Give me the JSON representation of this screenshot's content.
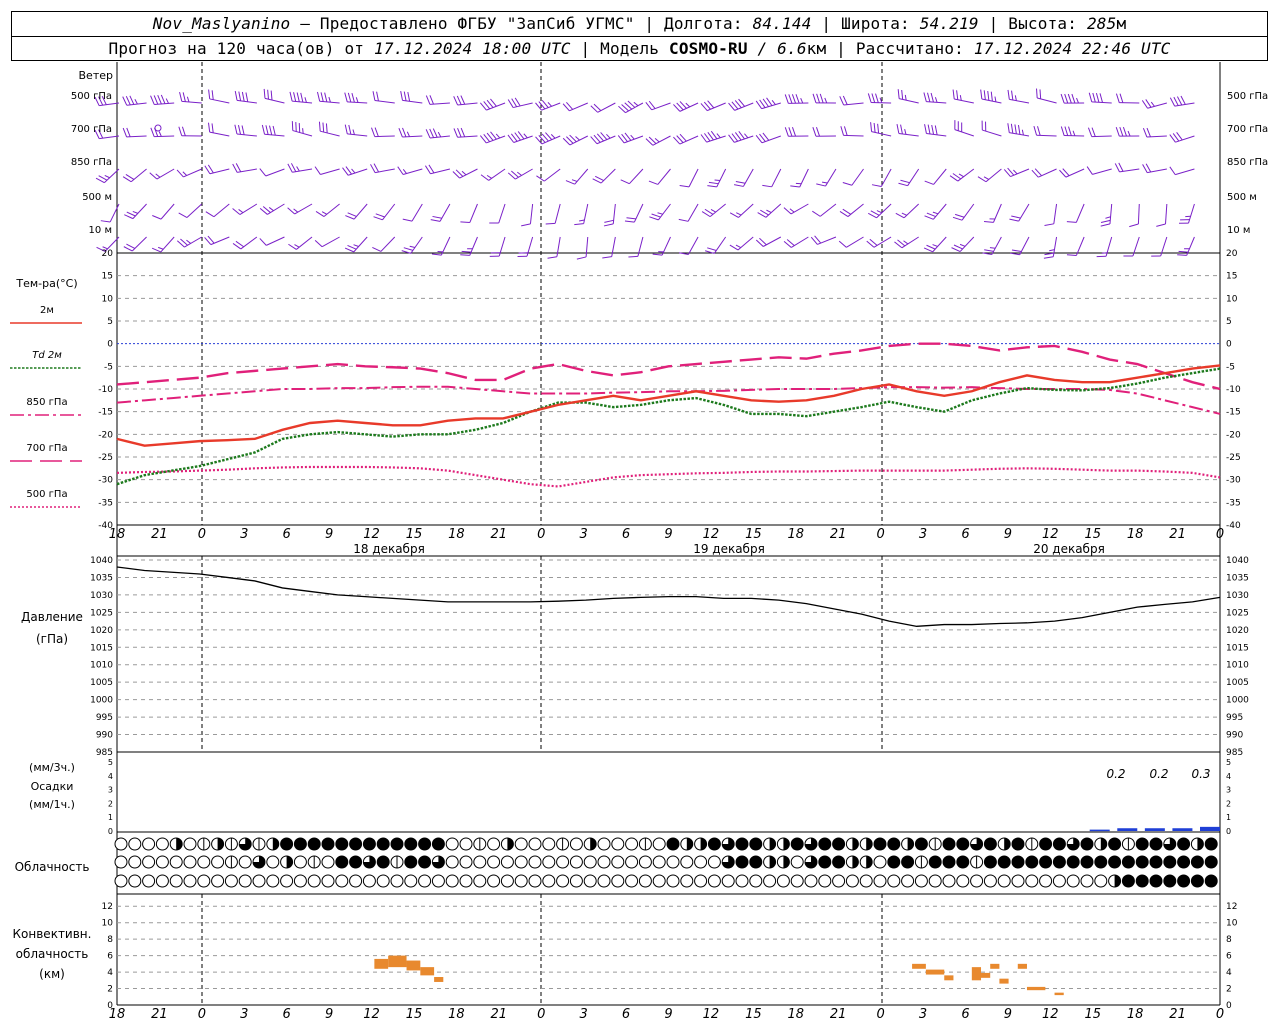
{
  "header": {
    "station": "Nov_Maslyanino",
    "provided_by": "Предоставлено ФГБУ \"ЗапСиб УГМС\"",
    "lon_label": "Долгота:",
    "lon_value": "84.144",
    "lat_label": "Широта:",
    "lat_value": "54.219",
    "alt_label": "Высота:",
    "alt_value": "285",
    "alt_unit": "м",
    "forecast_prefix": "Прогноз на 120 часа(ов) от",
    "forecast_start": "17.12.2024 18:00 UTC",
    "model_label": "Модель",
    "model_name": "COSMO-RU",
    "model_res": "/ 6.6",
    "model_res_unit": "км",
    "computed_label": "Рассчитано:",
    "computed_time": "17.12.2024 22:46 UTC"
  },
  "wind_panel": {
    "title": "Ветер",
    "levels": [
      "500 гПа",
      "700 гПа",
      "850 гПа",
      "500 м",
      "10  м"
    ],
    "color": "#7a20c8"
  },
  "temp_panel": {
    "title": "Тем-ра(°С)",
    "legend": [
      {
        "label": "2м",
        "color": "#e83a2a",
        "style": "solid"
      },
      {
        "label": "Td  2м",
        "color": "#1d7a1d",
        "style": "dotted"
      },
      {
        "label": "850 гПа",
        "color": "#e0207a",
        "style": "dashdot"
      },
      {
        "label": "700 гПа",
        "color": "#e0207a",
        "style": "dash"
      },
      {
        "label": "500 гПа",
        "color": "#e0207a",
        "style": "dot"
      }
    ]
  },
  "time_axis": {
    "hour_labels": [
      "18",
      "21",
      "0",
      "3",
      "6",
      "9",
      "12",
      "15",
      "18",
      "21",
      "0",
      "3",
      "6",
      "9",
      "12",
      "15",
      "18",
      "21",
      "0",
      "3",
      "6",
      "9",
      "12",
      "15",
      "18",
      "21",
      "0"
    ],
    "day_labels": [
      "18 декабря",
      "19 декабря",
      "20 декабря"
    ]
  },
  "pressure_panel": {
    "title": "Давление",
    "unit": "(гПа)"
  },
  "precip_panel": {
    "unit1": "(мм/3ч.)",
    "title": "Осадки",
    "unit2": "(мм/1ч.)",
    "annotations": [
      "0.2",
      "0.2",
      "0.3"
    ],
    "color": "#1f3fd6"
  },
  "cloud_panel": {
    "title": "Облачность"
  },
  "conv_panel": {
    "title1": "Конвективн.",
    "title2": "облачность",
    "unit": "(км)",
    "color": "#e8892e"
  },
  "chart_data": [
    {
      "type": "line",
      "title": "Тем-ра(°С)",
      "x_hours": [
        0,
        3,
        6,
        9,
        12,
        15,
        18,
        21,
        24,
        27,
        30,
        33,
        36,
        39,
        42,
        45,
        48,
        51,
        54,
        57,
        60,
        63,
        66,
        69,
        72,
        75,
        78,
        81,
        84,
        87,
        90,
        93,
        96,
        99,
        102,
        105,
        108,
        111,
        114,
        117,
        120
      ],
      "ylim": [
        -40,
        20
      ],
      "yticks": [
        -40,
        -35,
        -30,
        -25,
        -20,
        -15,
        -10,
        -5,
        0,
        5,
        10,
        15,
        20
      ],
      "series": [
        {
          "name": "2м",
          "values": [
            -21,
            -22.5,
            -22,
            -21.5,
            -21.3,
            -21,
            -19,
            -17.5,
            -17,
            -17.5,
            -18,
            -18,
            -17,
            -16.5,
            -16.5,
            -15,
            -13.5,
            -12.5,
            -11.5,
            -12.5,
            -11.5,
            -10.5,
            -11.5,
            -12.5,
            -12.8,
            -12.5,
            -11.5,
            -10,
            -9,
            -10.5,
            -11.5,
            -10.5,
            -8.5,
            -7,
            -8,
            -8.5,
            -8.5,
            -7.5,
            -6.5,
            -5.5,
            -4.8
          ]
        },
        {
          "name": "Td  2м",
          "values": [
            -31,
            -29,
            -28,
            -27,
            -25.5,
            -24,
            -21,
            -20,
            -19.5,
            -20,
            -20.5,
            -20,
            -20,
            -19,
            -17.5,
            -15,
            -13,
            -13,
            -14,
            -13.5,
            -12.5,
            -12,
            -13.5,
            -15.5,
            -15.5,
            -16,
            -15,
            -14,
            -12.8,
            -14,
            -15,
            -12.5,
            -11,
            -9.8,
            -10.2,
            -10.3,
            -9.8,
            -8.8,
            -7.5,
            -6.5,
            -5.5
          ]
        },
        {
          "name": "850 гПа",
          "values": [
            -13,
            -12.5,
            -12,
            -11.5,
            -11,
            -10.5,
            -10,
            -10,
            -9.8,
            -9.8,
            -9.6,
            -9.5,
            -9.5,
            -10,
            -10.5,
            -11,
            -11,
            -11,
            -10.8,
            -10.7,
            -10.5,
            -10.5,
            -10.4,
            -10.2,
            -10,
            -10,
            -10,
            -9.8,
            -9.6,
            -9.6,
            -9.7,
            -9.6,
            -9.8,
            -10,
            -10,
            -10,
            -10.2,
            -11,
            -12.5,
            -14,
            -15.5
          ]
        },
        {
          "name": "700 гПа",
          "values": [
            -9,
            -8.5,
            -8,
            -7.5,
            -6.5,
            -6,
            -5.5,
            -5,
            -4.5,
            -5,
            -5.2,
            -5.5,
            -6.5,
            -8,
            -8,
            -5.5,
            -4.5,
            -6,
            -7,
            -6.3,
            -5,
            -4.5,
            -4,
            -3.5,
            -3,
            -3.3,
            -2.2,
            -1.5,
            -0.5,
            0,
            0,
            -0.5,
            -1.5,
            -0.8,
            -0.5,
            -1.8,
            -3.5,
            -4.5,
            -6.5,
            -8.5,
            -10
          ]
        },
        {
          "name": "500 гПа",
          "values": [
            -28.5,
            -28.3,
            -28.2,
            -28,
            -27.8,
            -27.5,
            -27.3,
            -27.2,
            -27.2,
            -27.2,
            -27.3,
            -27.5,
            -28,
            -29,
            -30,
            -31,
            -31.5,
            -30.5,
            -29.5,
            -29,
            -28.8,
            -28.6,
            -28.5,
            -28.3,
            -28.2,
            -28.2,
            -28.1,
            -28,
            -28,
            -28,
            -28,
            -27.8,
            -27.6,
            -27.5,
            -27.6,
            -27.8,
            -28,
            -28,
            -28.2,
            -28.5,
            -29.5
          ]
        }
      ]
    },
    {
      "type": "line",
      "title": "Давление",
      "x_hours": [
        0,
        3,
        6,
        9,
        12,
        15,
        18,
        21,
        24,
        27,
        30,
        33,
        36,
        39,
        42,
        45,
        48,
        51,
        54,
        57,
        60,
        63,
        66,
        69,
        72,
        75,
        78,
        81,
        84,
        87,
        90,
        93,
        96,
        99,
        102,
        105,
        108,
        111,
        114,
        117,
        120
      ],
      "ylim": [
        985,
        1040
      ],
      "yticks": [
        985,
        990,
        995,
        1000,
        1005,
        1010,
        1015,
        1020,
        1025,
        1030,
        1035,
        1040
      ],
      "series": [
        {
          "name": "",
          "values": [
            1038,
            1037,
            1036.5,
            1036,
            1035,
            1034,
            1032,
            1031,
            1030,
            1029.5,
            1029,
            1028.5,
            1028,
            1028,
            1028,
            1028,
            1028.2,
            1028.5,
            1029,
            1029.3,
            1029.5,
            1029.5,
            1029,
            1029,
            1028.5,
            1027.5,
            1026,
            1024.5,
            1022.5,
            1021,
            1021.5,
            1021.5,
            1021.8,
            1022,
            1022.5,
            1023.5,
            1025,
            1026.5,
            1027.3,
            1028,
            1029.3
          ]
        }
      ]
    },
    {
      "type": "bar",
      "title": "Осадки",
      "x_hours": [
        108,
        111,
        114,
        117,
        120
      ],
      "ylim": [
        0,
        5
      ],
      "values": [
        0.1,
        0.2,
        0.2,
        0.2,
        0.3
      ]
    },
    {
      "type": "bar",
      "title": "Конвективн. облачность",
      "ylim": [
        0,
        13
      ],
      "yticks": [
        0,
        2,
        4,
        6,
        8,
        10,
        12
      ],
      "segments": [
        {
          "x": [
            28,
            29.5
          ],
          "bottom": 4.4,
          "top": 5.6
        },
        {
          "x": [
            29.5,
            31.5
          ],
          "bottom": 4.6,
          "top": 6.0
        },
        {
          "x": [
            31.5,
            33
          ],
          "bottom": 4.2,
          "top": 5.4
        },
        {
          "x": [
            33,
            34.5
          ],
          "bottom": 3.6,
          "top": 4.6
        },
        {
          "x": [
            34.5,
            35.5
          ],
          "bottom": 2.8,
          "top": 3.4
        },
        {
          "x": [
            86.5,
            88
          ],
          "bottom": 4.4,
          "top": 5.0
        },
        {
          "x": [
            88,
            90
          ],
          "bottom": 3.7,
          "top": 4.3
        },
        {
          "x": [
            90,
            91
          ],
          "bottom": 3.0,
          "top": 3.6
        },
        {
          "x": [
            93,
            94
          ],
          "bottom": 3.0,
          "top": 4.6
        },
        {
          "x": [
            94,
            95
          ],
          "bottom": 3.3,
          "top": 3.9
        },
        {
          "x": [
            95,
            96
          ],
          "bottom": 4.4,
          "top": 5.0
        },
        {
          "x": [
            96,
            97
          ],
          "bottom": 2.6,
          "top": 3.2
        },
        {
          "x": [
            98,
            99
          ],
          "bottom": 4.4,
          "top": 5.0
        },
        {
          "x": [
            99,
            101
          ],
          "bottom": 1.8,
          "top": 2.2
        },
        {
          "x": [
            102,
            103
          ],
          "bottom": 1.2,
          "top": 1.5
        }
      ]
    }
  ]
}
